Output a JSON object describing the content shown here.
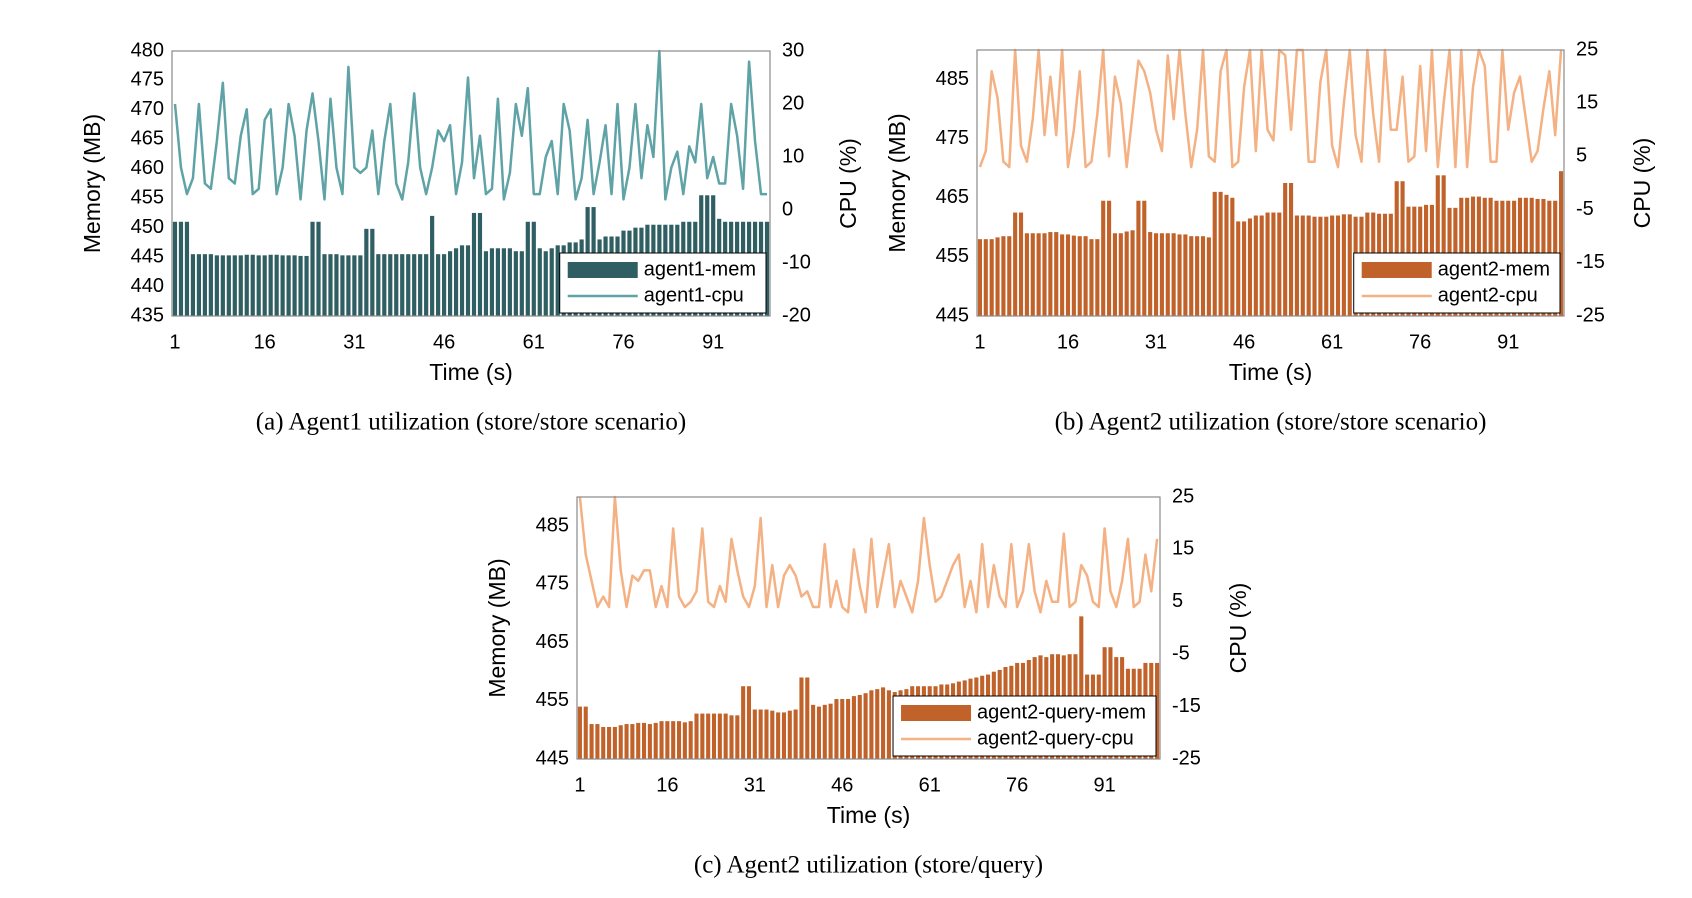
{
  "chart_data": [
    {
      "type": "bar-line",
      "caption": "(a) Agent1 utilization (store/store scenario)",
      "xlabel": "Time (s)",
      "ylabel": "Memory (MB)",
      "y2label": "CPU (%)",
      "x": [
        1,
        2,
        3,
        4,
        5,
        6,
        7,
        8,
        9,
        10,
        11,
        12,
        13,
        14,
        15,
        16,
        17,
        18,
        19,
        20,
        21,
        22,
        23,
        24,
        25,
        26,
        27,
        28,
        29,
        30,
        31,
        32,
        33,
        34,
        35,
        36,
        37,
        38,
        39,
        40,
        41,
        42,
        43,
        44,
        45,
        46,
        47,
        48,
        49,
        50,
        51,
        52,
        53,
        54,
        55,
        56,
        57,
        58,
        59,
        60,
        61,
        62,
        63,
        64,
        65,
        66,
        67,
        68,
        69,
        70,
        71,
        72,
        73,
        74,
        75,
        76,
        77,
        78,
        79,
        80,
        81,
        82,
        83,
        84,
        85,
        86,
        87,
        88,
        89,
        90,
        91,
        92,
        93,
        94,
        95,
        96,
        97,
        98,
        99,
        100
      ],
      "xlim": [
        0.5,
        100.5
      ],
      "xticks": [
        1,
        16,
        31,
        46,
        61,
        76,
        91
      ],
      "ylim": [
        435,
        480
      ],
      "yticks": [
        435,
        440,
        445,
        450,
        455,
        460,
        465,
        470,
        475,
        480
      ],
      "y2lim": [
        -20,
        30
      ],
      "y2ticks": [
        -20,
        -10,
        0,
        10,
        20,
        30
      ],
      "legend": "lower right",
      "series": [
        {
          "name": "agent1-mem",
          "type": "bar",
          "color": "#2f5f62",
          "values": [
            451,
            451,
            451,
            445.5,
            445.5,
            445.5,
            445.5,
            445.3,
            445.3,
            445.3,
            445.3,
            445.3,
            445.4,
            445.4,
            445.3,
            445.3,
            445.4,
            445.4,
            445.3,
            445.3,
            445.3,
            445.2,
            445.2,
            451,
            451,
            445.5,
            445.5,
            445.5,
            445.3,
            445.3,
            445.3,
            445.3,
            449.8,
            449.8,
            445.5,
            445.5,
            445.5,
            445.5,
            445.5,
            445.5,
            445.5,
            445.5,
            445.5,
            452,
            445.5,
            445.5,
            446,
            446.5,
            447,
            447,
            452.5,
            452.5,
            446,
            446.5,
            446.5,
            446.5,
            446.5,
            446,
            446,
            451,
            451,
            446.5,
            446,
            446.5,
            447,
            447,
            447.5,
            447.5,
            448,
            453.5,
            453.5,
            448,
            448.5,
            448.5,
            448.5,
            449.5,
            449.5,
            450,
            450,
            450.5,
            450.5,
            450.5,
            450.5,
            450.5,
            450.5,
            451,
            451,
            451,
            455.5,
            455.5,
            455.5,
            451.5,
            451,
            451,
            451,
            451,
            451,
            451,
            451,
            451
          ]
        },
        {
          "name": "agent1-cpu",
          "type": "line",
          "axis": "y2",
          "color": "#5fa3a6",
          "values": [
            20,
            8,
            3,
            6,
            20,
            5,
            4,
            13,
            24,
            6,
            5,
            14,
            19,
            3,
            4,
            17,
            19,
            3,
            8,
            20,
            14,
            2,
            15,
            22,
            13,
            2,
            21,
            8,
            3,
            27,
            8,
            7,
            8,
            15,
            3,
            13,
            20,
            5,
            2,
            9,
            22,
            8,
            3,
            8,
            15,
            13,
            16,
            3,
            9,
            25,
            6,
            14,
            3,
            4,
            21,
            2,
            7,
            20,
            14,
            23,
            3,
            3,
            10,
            13,
            3,
            20,
            15,
            2,
            6,
            17,
            3,
            9,
            16,
            3,
            20,
            2,
            8,
            20,
            6,
            16,
            10,
            30,
            2,
            8,
            11,
            3,
            12,
            9,
            20,
            6,
            10,
            5,
            5,
            20,
            14,
            4,
            28,
            13,
            3,
            3
          ]
        }
      ]
    },
    {
      "type": "bar-line",
      "caption": "(b) Agent2 utilization (store/store scenario)",
      "xlabel": "Time (s)",
      "ylabel": "Memory (MB)",
      "y2label": "CPU (%)",
      "x": [
        1,
        2,
        3,
        4,
        5,
        6,
        7,
        8,
        9,
        10,
        11,
        12,
        13,
        14,
        15,
        16,
        17,
        18,
        19,
        20,
        21,
        22,
        23,
        24,
        25,
        26,
        27,
        28,
        29,
        30,
        31,
        32,
        33,
        34,
        35,
        36,
        37,
        38,
        39,
        40,
        41,
        42,
        43,
        44,
        45,
        46,
        47,
        48,
        49,
        50,
        51,
        52,
        53,
        54,
        55,
        56,
        57,
        58,
        59,
        60,
        61,
        62,
        63,
        64,
        65,
        66,
        67,
        68,
        69,
        70,
        71,
        72,
        73,
        74,
        75,
        76,
        77,
        78,
        79,
        80,
        81,
        82,
        83,
        84,
        85,
        86,
        87,
        88,
        89,
        90,
        91,
        92,
        93,
        94,
        95,
        96,
        97,
        98,
        99,
        100
      ],
      "xlim": [
        0.5,
        100.5
      ],
      "xticks": [
        1,
        16,
        31,
        46,
        61,
        76,
        91
      ],
      "ylim": [
        445,
        490
      ],
      "yticks": [
        445,
        455,
        465,
        475,
        485
      ],
      "y2lim": [
        -25,
        25
      ],
      "y2ticks": [
        -25,
        -15,
        -5,
        5,
        15,
        25
      ],
      "legend": "lower right",
      "series": [
        {
          "name": "agent2-mem",
          "type": "bar",
          "color": "#c0622a",
          "values": [
            458,
            458,
            458,
            458.3,
            458.5,
            458.5,
            462.5,
            462.5,
            459,
            459,
            459,
            459,
            459.2,
            459.2,
            458.8,
            458.8,
            458.6,
            458.5,
            458.5,
            458,
            458,
            464.5,
            464.5,
            459,
            459,
            459.3,
            459.5,
            464.5,
            464.5,
            459.2,
            459,
            459,
            459,
            459,
            458.8,
            458.8,
            458.5,
            458.5,
            458.5,
            458.3,
            466,
            466,
            465.5,
            465,
            461,
            461,
            461.5,
            462,
            462,
            462.5,
            462.5,
            462.5,
            467.5,
            467.5,
            462,
            462,
            462,
            461.8,
            461.8,
            461.8,
            462,
            462,
            462.2,
            462.2,
            461.8,
            461.8,
            462.5,
            462.5,
            462.3,
            462.3,
            462.3,
            467.8,
            467.8,
            463.5,
            463.5,
            463.5,
            463.8,
            463.8,
            468.8,
            468.8,
            463.3,
            463.3,
            465,
            465,
            465.2,
            465.2,
            465,
            465,
            464.5,
            464.5,
            464.5,
            464.5,
            465,
            465,
            465,
            464.8,
            464.8,
            464.5,
            464.5,
            469.5
          ]
        },
        {
          "name": "agent2-cpu",
          "type": "line",
          "axis": "y2",
          "color": "#f4b183",
          "values": [
            3,
            6,
            21,
            16,
            4,
            3,
            25,
            7,
            4,
            12,
            25,
            9,
            20,
            9,
            25,
            3,
            10,
            21,
            3,
            4,
            13,
            25,
            5,
            20,
            15,
            3,
            13,
            23,
            21,
            17,
            10,
            6,
            24,
            12,
            25,
            13,
            3,
            10,
            25,
            5,
            4,
            21,
            25,
            3,
            4,
            18,
            25,
            6,
            25,
            10,
            8,
            25,
            24,
            10,
            25,
            25,
            4,
            4,
            19,
            25,
            7,
            3,
            15,
            25,
            9,
            4,
            25,
            13,
            4,
            25,
            10,
            10,
            20,
            4,
            5,
            22,
            6,
            25,
            3,
            15,
            25,
            3,
            25,
            3,
            18,
            25,
            22,
            4,
            4,
            25,
            10,
            17,
            20,
            12,
            4,
            6,
            14,
            21,
            9,
            25
          ]
        }
      ]
    },
    {
      "type": "bar-line",
      "caption": "(c) Agent2 utilization (store/query)",
      "xlabel": "Time (s)",
      "ylabel": "Memory (MB)",
      "y2label": "CPU (%)",
      "x": [
        1,
        2,
        3,
        4,
        5,
        6,
        7,
        8,
        9,
        10,
        11,
        12,
        13,
        14,
        15,
        16,
        17,
        18,
        19,
        20,
        21,
        22,
        23,
        24,
        25,
        26,
        27,
        28,
        29,
        30,
        31,
        32,
        33,
        34,
        35,
        36,
        37,
        38,
        39,
        40,
        41,
        42,
        43,
        44,
        45,
        46,
        47,
        48,
        49,
        50,
        51,
        52,
        53,
        54,
        55,
        56,
        57,
        58,
        59,
        60,
        61,
        62,
        63,
        64,
        65,
        66,
        67,
        68,
        69,
        70,
        71,
        72,
        73,
        74,
        75,
        76,
        77,
        78,
        79,
        80,
        81,
        82,
        83,
        84,
        85,
        86,
        87,
        88,
        89,
        90,
        91,
        92,
        93,
        94,
        95,
        96,
        97,
        98,
        99,
        100
      ],
      "xlim": [
        0.5,
        100.5
      ],
      "xticks": [
        1,
        16,
        31,
        46,
        61,
        76,
        91
      ],
      "ylim": [
        445,
        490
      ],
      "yticks": [
        445,
        455,
        465,
        475,
        485
      ],
      "y2lim": [
        -25,
        25
      ],
      "y2ticks": [
        -25,
        -15,
        -5,
        5,
        15,
        25
      ],
      "legend": "lower right",
      "series": [
        {
          "name": "agent2-query-mem",
          "type": "bar",
          "color": "#c0622a",
          "values": [
            454,
            454,
            451,
            451,
            450.5,
            450.5,
            450.5,
            450.8,
            451,
            451,
            451.2,
            451.2,
            451,
            451.2,
            451.5,
            451.5,
            451.5,
            451.5,
            451.3,
            451.5,
            452.8,
            452.8,
            452.8,
            452.8,
            452.8,
            452.8,
            452.5,
            452.5,
            457.5,
            457.5,
            453.5,
            453.5,
            453.5,
            453.3,
            453,
            453,
            453.3,
            453.5,
            459,
            459,
            454.3,
            454,
            454.3,
            454.5,
            455.3,
            455.3,
            455.3,
            455.8,
            456,
            456.3,
            456.8,
            457,
            457.3,
            456.8,
            456.5,
            456.8,
            457,
            457.5,
            457.5,
            457.5,
            457.5,
            457.5,
            457.8,
            457.8,
            458,
            458.3,
            458.5,
            458.8,
            459,
            459.3,
            459.5,
            460,
            460.3,
            460.8,
            461,
            461.5,
            461.5,
            462,
            462.5,
            462.8,
            462.5,
            463,
            463,
            462.8,
            463,
            463,
            469.5,
            459.5,
            459.5,
            459.5,
            464.2,
            464.2,
            462.5,
            462.5,
            460.5,
            460.5,
            460.5,
            461.5,
            461.5,
            461.5
          ]
        },
        {
          "name": "agent2-query-cpu",
          "type": "line",
          "axis": "y2",
          "color": "#f4b183",
          "values": [
            25,
            14,
            9,
            4,
            6,
            4,
            25,
            11,
            4,
            10,
            9,
            11,
            11,
            4,
            8,
            4,
            19,
            6,
            4,
            5,
            7,
            19,
            5,
            4,
            8,
            5,
            17,
            11,
            6,
            4,
            8,
            21,
            4,
            12,
            4,
            10,
            12,
            10,
            6,
            7,
            4,
            4,
            16,
            4,
            9,
            4,
            3,
            15,
            8,
            3,
            17,
            4,
            10,
            16,
            4,
            9,
            6,
            3,
            9,
            21,
            12,
            5,
            6,
            9,
            12,
            14,
            4,
            9,
            3,
            16,
            4,
            12,
            6,
            4,
            16,
            4,
            7,
            16,
            7,
            3,
            9,
            5,
            5,
            18,
            4,
            5,
            12,
            10,
            5,
            4,
            19,
            7,
            4,
            9,
            17,
            4,
            5,
            14,
            7,
            17
          ]
        }
      ]
    }
  ]
}
